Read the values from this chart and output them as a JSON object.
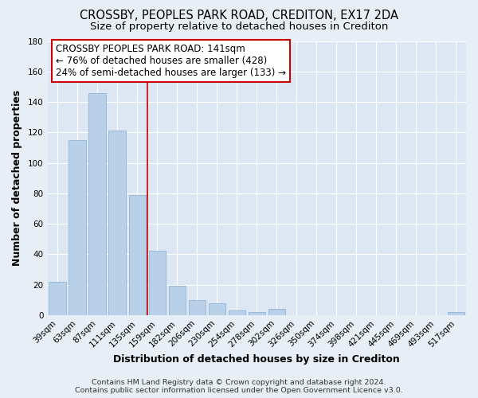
{
  "title": "CROSSBY, PEOPLES PARK ROAD, CREDITON, EX17 2DA",
  "subtitle": "Size of property relative to detached houses in Crediton",
  "xlabel": "Distribution of detached houses by size in Crediton",
  "ylabel": "Number of detached properties",
  "footer_line1": "Contains HM Land Registry data © Crown copyright and database right 2024.",
  "footer_line2": "Contains public sector information licensed under the Open Government Licence v3.0.",
  "categories": [
    "39sqm",
    "63sqm",
    "87sqm",
    "111sqm",
    "135sqm",
    "159sqm",
    "182sqm",
    "206sqm",
    "230sqm",
    "254sqm",
    "278sqm",
    "302sqm",
    "326sqm",
    "350sqm",
    "374sqm",
    "398sqm",
    "421sqm",
    "445sqm",
    "469sqm",
    "493sqm",
    "517sqm"
  ],
  "values": [
    22,
    115,
    146,
    121,
    79,
    42,
    19,
    10,
    8,
    3,
    2,
    4,
    0,
    0,
    0,
    0,
    0,
    0,
    0,
    0,
    2
  ],
  "bar_color": "#b8d0e8",
  "bar_edge_color": "#90b4d8",
  "annotation_title": "CROSSBY PEOPLES PARK ROAD: 141sqm",
  "annotation_line1": "← 76% of detached houses are smaller (428)",
  "annotation_line2": "24% of semi-detached houses are larger (133) →",
  "red_line_index": 4,
  "ylim": [
    0,
    180
  ],
  "yticks": [
    0,
    20,
    40,
    60,
    80,
    100,
    120,
    140,
    160,
    180
  ],
  "fig_bg_color": "#e8eef5",
  "plot_bg_color": "#dce7f3",
  "grid_color": "#ffffff",
  "title_fontsize": 10.5,
  "subtitle_fontsize": 9.5,
  "axis_label_fontsize": 9,
  "tick_fontsize": 7.5,
  "footer_fontsize": 6.8,
  "annotation_fontsize": 8.5
}
